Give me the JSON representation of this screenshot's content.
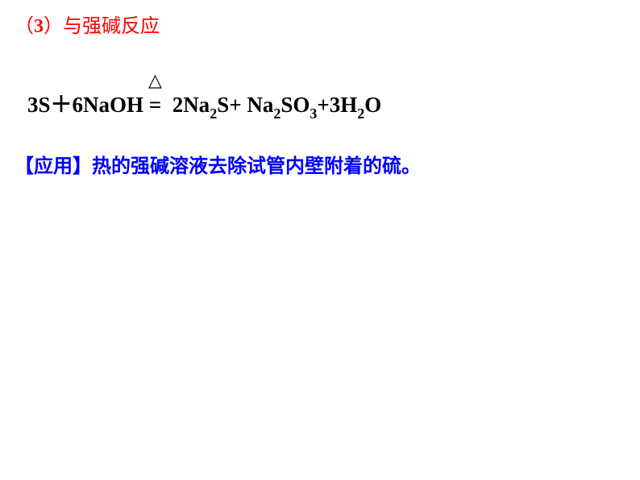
{
  "heading": {
    "paren_open": "（",
    "number": "3",
    "paren_close": "）",
    "text": "与强碱反应"
  },
  "equation": {
    "lhs_coeff1": "3S",
    "plus1": "＋",
    "lhs_coeff2": "6NaOH",
    "delta": "△",
    "equals": "=",
    "rhs1_coeff": "2Na",
    "rhs1_sub": "2",
    "rhs1_suffix": "S",
    "plus2": "+ ",
    "rhs2_prefix": "Na",
    "rhs2_sub1": "2",
    "rhs2_mid": "SO",
    "rhs2_sub2": "3",
    "plus3": "+",
    "rhs3_coeff": "3H",
    "rhs3_sub": "2",
    "rhs3_suffix": "O"
  },
  "application": {
    "label": "【应用】",
    "text": "热的强碱溶液去除试管内壁附着的硫。"
  },
  "colors": {
    "heading": "#ff0000",
    "equation": "#000000",
    "application": "#0000ff",
    "background": "#ffffff"
  }
}
